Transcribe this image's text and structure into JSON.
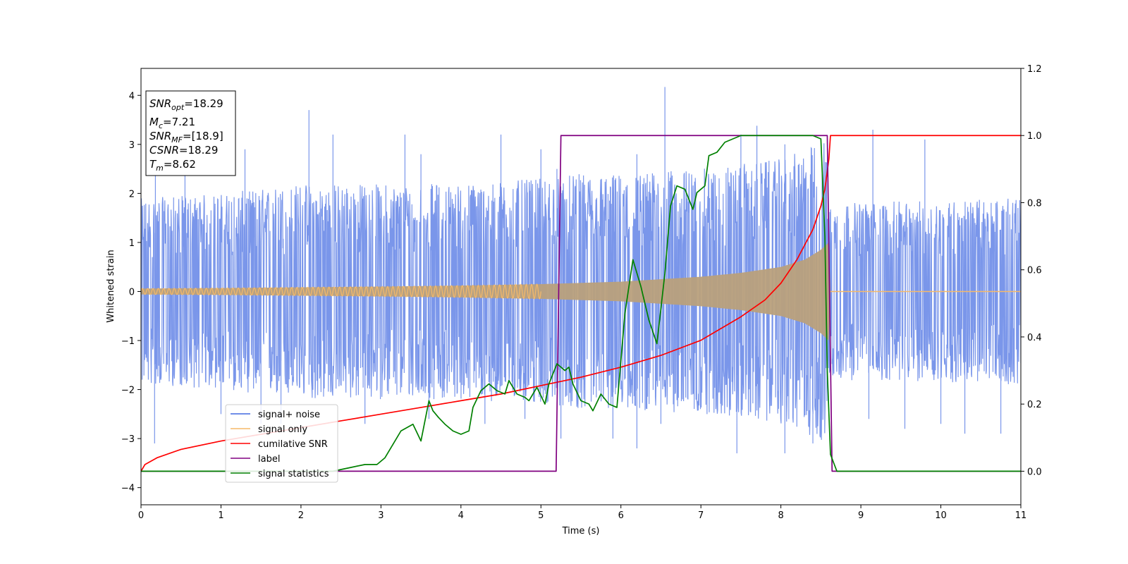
{
  "chart_data": {
    "type": "line",
    "xlabel": "Time (s)",
    "ylabel": "Whitened strain",
    "xlim": [
      0,
      11
    ],
    "ylim": [
      -4.35,
      4.55
    ],
    "y2lim": [
      -0.1,
      1.2
    ],
    "x_ticks": [
      "0",
      "1",
      "2",
      "3",
      "4",
      "5",
      "6",
      "7",
      "8",
      "9",
      "10",
      "11"
    ],
    "y_ticks": [
      "−4",
      "−3",
      "−2",
      "−1",
      "0",
      "1",
      "2",
      "3",
      "4"
    ],
    "y2_ticks": [
      "0.0",
      "0.2",
      "0.4",
      "0.6",
      "0.8",
      "1.0",
      "1.2"
    ],
    "grid": false,
    "legend_position": "lower-left",
    "info_box": {
      "position": "top-left",
      "lines": [
        {
          "sym": "SNR",
          "sub": "opt",
          "val": "=18.29"
        },
        {
          "sym": "M",
          "sub": "c",
          "val": "=7.21"
        },
        {
          "sym": "SNR",
          "sub": "MF",
          "val": "=[18.9]"
        },
        {
          "sym": "CSNR",
          "sub": "",
          "val": "=18.29"
        },
        {
          "sym": "T",
          "sub": "m",
          "val": "=8.62"
        }
      ]
    },
    "series": [
      {
        "name": "signal+ noise",
        "color": "#4169e1",
        "axis": "left",
        "noise_envelope": {
          "points": [
            [
              0,
              1.9,
              -1.9
            ],
            [
              1,
              2.0,
              -2.0
            ],
            [
              2,
              2.2,
              -2.2
            ],
            [
              3,
              2.2,
              -2.2
            ],
            [
              4,
              2.2,
              -2.2
            ],
            [
              5,
              2.3,
              -2.3
            ],
            [
              5.5,
              2.4,
              -2.4
            ],
            [
              6,
              2.4,
              -2.4
            ],
            [
              7,
              2.5,
              -2.5
            ],
            [
              7.5,
              2.6,
              -2.6
            ],
            [
              8,
              2.7,
              -2.7
            ],
            [
              8.3,
              2.9,
              -2.9
            ],
            [
              8.55,
              3.1,
              -3.1
            ],
            [
              8.62,
              1.8,
              -1.8
            ],
            [
              11,
              1.9,
              -1.9
            ]
          ],
          "spikes": [
            [
              0.18,
              3.0
            ],
            [
              0.55,
              3.0
            ],
            [
              1.3,
              2.9
            ],
            [
              2.1,
              3.7
            ],
            [
              2.4,
              3.2
            ],
            [
              2.1,
              -1.9
            ],
            [
              3.3,
              3.2
            ],
            [
              3.5,
              2.8
            ],
            [
              4.5,
              3.2
            ],
            [
              5.0,
              2.9
            ],
            [
              5.2,
              2.5
            ],
            [
              6.2,
              2.8
            ],
            [
              6.55,
              4.17
            ],
            [
              7.5,
              3.2
            ],
            [
              7.7,
              3.38
            ],
            [
              8.05,
              3.0
            ],
            [
              9.15,
              3.3
            ],
            [
              9.8,
              3.1
            ],
            [
              0.17,
              -3.1
            ],
            [
              1.5,
              -2.7
            ],
            [
              1.75,
              -2.7
            ],
            [
              2.8,
              -2.7
            ],
            [
              3.6,
              -2.6
            ],
            [
              4.3,
              -2.7
            ],
            [
              5.25,
              -3.0
            ],
            [
              5.9,
              -3.0
            ],
            [
              6.2,
              -3.2
            ],
            [
              7.45,
              -3.3
            ],
            [
              8.05,
              -3.3
            ],
            [
              8.4,
              -3.1
            ],
            [
              9.55,
              -2.8
            ],
            [
              10.3,
              -2.9
            ],
            [
              10.75,
              -2.9
            ],
            [
              1.0,
              -2.5
            ],
            [
              4.8,
              -2.6
            ],
            [
              6.5,
              -2.7
            ],
            [
              9.1,
              -2.6
            ],
            [
              10.0,
              -2.7
            ]
          ]
        }
      },
      {
        "name": "signal only",
        "color": "#f5b969",
        "fill_color": "#b9a07c",
        "axis": "left",
        "chirp_envelope": {
          "points": [
            [
              0,
              0.06
            ],
            [
              1,
              0.07
            ],
            [
              2,
              0.085
            ],
            [
              3,
              0.1
            ],
            [
              4,
              0.12
            ],
            [
              5,
              0.15
            ],
            [
              6,
              0.2
            ],
            [
              7,
              0.3
            ],
            [
              7.5,
              0.38
            ],
            [
              8,
              0.5
            ],
            [
              8.3,
              0.65
            ],
            [
              8.5,
              0.85
            ],
            [
              8.6,
              1.0
            ],
            [
              8.62,
              0
            ]
          ],
          "cycles_visible": 75
        }
      },
      {
        "name": "cumilative SNR",
        "color": "#ff0000",
        "axis": "right",
        "x": [
          0,
          0.05,
          0.2,
          0.5,
          1,
          1.5,
          2,
          2.5,
          3,
          3.5,
          4,
          4.5,
          5,
          5.5,
          6,
          6.5,
          7,
          7.5,
          7.8,
          8.0,
          8.2,
          8.4,
          8.5,
          8.55,
          8.6,
          8.62,
          11
        ],
        "values": [
          0.0,
          0.02,
          0.04,
          0.065,
          0.09,
          0.11,
          0.13,
          0.15,
          0.17,
          0.19,
          0.21,
          0.23,
          0.255,
          0.28,
          0.31,
          0.345,
          0.39,
          0.46,
          0.51,
          0.56,
          0.63,
          0.72,
          0.79,
          0.84,
          0.93,
          1.0,
          1.0
        ]
      },
      {
        "name": "label",
        "color": "#800080",
        "axis": "right",
        "x": [
          0,
          5.19,
          5.25,
          8.58,
          8.64,
          11
        ],
        "values": [
          0,
          0,
          1,
          1,
          0,
          0
        ]
      },
      {
        "name": "signal statistics",
        "color": "#008000",
        "axis": "right",
        "x": [
          0,
          0.5,
          1.0,
          1.5,
          2.0,
          2.4,
          2.6,
          2.8,
          2.95,
          3.05,
          3.15,
          3.25,
          3.4,
          3.5,
          3.6,
          3.65,
          3.72,
          3.8,
          3.9,
          4.0,
          4.1,
          4.15,
          4.25,
          4.35,
          4.45,
          4.55,
          4.6,
          4.7,
          4.8,
          4.85,
          4.95,
          5.05,
          5.1,
          5.2,
          5.3,
          5.35,
          5.4,
          5.5,
          5.6,
          5.65,
          5.75,
          5.85,
          5.95,
          6.05,
          6.15,
          6.25,
          6.35,
          6.45,
          6.55,
          6.62,
          6.7,
          6.8,
          6.9,
          6.95,
          7.05,
          7.1,
          7.2,
          7.3,
          7.5,
          7.8,
          8.1,
          8.4,
          8.5,
          8.55,
          8.58,
          8.62,
          8.7,
          9.0,
          11.0
        ],
        "values": [
          0.0,
          0.0,
          0.0,
          0.0,
          0.0,
          0.0,
          0.01,
          0.02,
          0.02,
          0.04,
          0.08,
          0.12,
          0.14,
          0.09,
          0.21,
          0.18,
          0.16,
          0.14,
          0.12,
          0.11,
          0.12,
          0.19,
          0.24,
          0.26,
          0.24,
          0.23,
          0.27,
          0.23,
          0.22,
          0.21,
          0.25,
          0.2,
          0.26,
          0.32,
          0.3,
          0.31,
          0.26,
          0.21,
          0.2,
          0.18,
          0.23,
          0.2,
          0.19,
          0.47,
          0.63,
          0.55,
          0.45,
          0.38,
          0.59,
          0.79,
          0.85,
          0.84,
          0.78,
          0.83,
          0.85,
          0.94,
          0.95,
          0.98,
          1.0,
          1.0,
          1.0,
          1.0,
          0.99,
          0.7,
          0.3,
          0.05,
          0.0,
          0.0,
          0.0
        ]
      }
    ]
  }
}
